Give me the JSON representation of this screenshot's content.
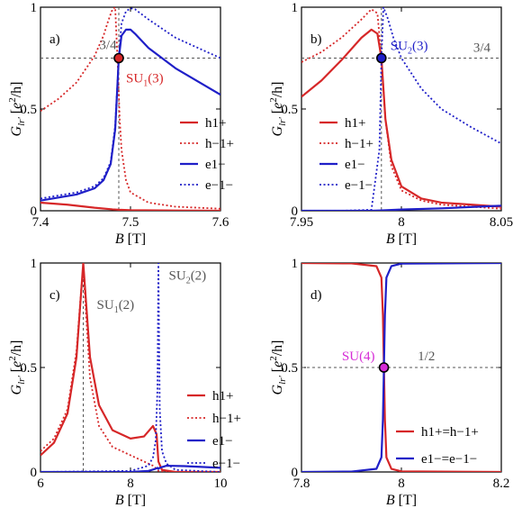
{
  "chart_data": [
    {
      "type": "line",
      "panel_label": "a)",
      "xlabel": "B [T]",
      "ylabel": "G_{lr'} [e^2/h]",
      "xlim": [
        7.4,
        7.6
      ],
      "ylim": [
        0,
        1
      ],
      "xticks": [
        7.4,
        7.5,
        7.6
      ],
      "xtick_labels": [
        "7.4",
        "7.5",
        "7.6"
      ],
      "yticks": [
        0,
        0.5,
        1
      ],
      "ytick_labels": [
        "0",
        "0.5",
        "1"
      ],
      "hline": {
        "y": 0.75,
        "label": "3/4"
      },
      "vline": {
        "x": 7.487
      },
      "marker": {
        "x": 7.487,
        "y": 0.75,
        "label": "SU",
        "sub": "1",
        "suffix": "(3)",
        "color": "#d62728"
      },
      "legend_placement": "right",
      "series": [
        {
          "name": "h1+",
          "color": "#d62728",
          "dash": false,
          "x": [
            7.4,
            7.43,
            7.46,
            7.48,
            7.487,
            7.5,
            7.55,
            7.6
          ],
          "y": [
            0.04,
            0.03,
            0.015,
            0.007,
            0.005,
            0.003,
            0.001,
            0.0
          ]
        },
        {
          "name": "h−1+",
          "color": "#d62728",
          "dash": true,
          "x": [
            7.4,
            7.42,
            7.44,
            7.46,
            7.47,
            7.475,
            7.48,
            7.483,
            7.486,
            7.488,
            7.49,
            7.495,
            7.5,
            7.52,
            7.55,
            7.6
          ],
          "y": [
            0.49,
            0.55,
            0.63,
            0.76,
            0.86,
            0.93,
            0.99,
            1.0,
            0.7,
            0.45,
            0.3,
            0.15,
            0.09,
            0.04,
            0.02,
            0.01
          ]
        },
        {
          "name": "e1−",
          "color": "#1f1fc8",
          "dash": false,
          "x": [
            7.4,
            7.44,
            7.46,
            7.47,
            7.478,
            7.483,
            7.487,
            7.49,
            7.495,
            7.5,
            7.505,
            7.52,
            7.55,
            7.6
          ],
          "y": [
            0.05,
            0.08,
            0.11,
            0.15,
            0.23,
            0.4,
            0.75,
            0.86,
            0.89,
            0.89,
            0.87,
            0.8,
            0.7,
            0.57
          ]
        },
        {
          "name": "e−1−",
          "color": "#1f1fc8",
          "dash": true,
          "x": [
            7.4,
            7.44,
            7.46,
            7.47,
            7.478,
            7.483,
            7.487,
            7.49,
            7.495,
            7.5,
            7.505,
            7.52,
            7.55,
            7.6
          ],
          "y": [
            0.06,
            0.09,
            0.12,
            0.16,
            0.24,
            0.42,
            0.75,
            0.92,
            0.98,
            0.995,
            0.99,
            0.94,
            0.85,
            0.75
          ]
        }
      ]
    },
    {
      "type": "line",
      "panel_label": "b)",
      "xlabel": "B [T]",
      "ylabel": "G_{lr'} [e^2/h]",
      "xlim": [
        7.95,
        8.05
      ],
      "ylim": [
        0,
        1
      ],
      "xticks": [
        7.95,
        8.0,
        8.05
      ],
      "xtick_labels": [
        "7.95",
        "8",
        "8.05"
      ],
      "yticks": [
        0,
        0.5,
        1
      ],
      "ytick_labels": [
        "0",
        "0.5",
        "1"
      ],
      "hline": {
        "y": 0.75,
        "label": "3/4"
      },
      "vline": {
        "x": 7.99
      },
      "marker": {
        "x": 7.99,
        "y": 0.75,
        "label": "SU",
        "sub": "2",
        "suffix": "(3)",
        "color": "#1f1fc8"
      },
      "legend_placement": "right",
      "series": [
        {
          "name": "h1+",
          "color": "#d62728",
          "dash": false,
          "x": [
            7.95,
            7.96,
            7.97,
            7.98,
            7.985,
            7.988,
            7.99,
            7.992,
            7.995,
            8.0,
            8.01,
            8.02,
            8.05
          ],
          "y": [
            0.56,
            0.64,
            0.74,
            0.85,
            0.89,
            0.87,
            0.75,
            0.45,
            0.25,
            0.12,
            0.06,
            0.04,
            0.02
          ]
        },
        {
          "name": "h−1+",
          "color": "#d62728",
          "dash": true,
          "x": [
            7.95,
            7.96,
            7.97,
            7.98,
            7.985,
            7.988,
            7.99,
            7.992,
            7.995,
            8.0,
            8.01,
            8.02,
            8.05
          ],
          "y": [
            0.73,
            0.78,
            0.85,
            0.94,
            0.99,
            0.97,
            0.75,
            0.45,
            0.22,
            0.1,
            0.05,
            0.03,
            0.01
          ]
        },
        {
          "name": "e1−",
          "color": "#1f1fc8",
          "dash": false,
          "x": [
            7.95,
            7.97,
            7.985,
            7.99,
            8.0,
            8.02,
            8.05
          ],
          "y": [
            0.0,
            0.0,
            0.0,
            0.002,
            0.006,
            0.012,
            0.025
          ]
        },
        {
          "name": "e−1−",
          "color": "#1f1fc8",
          "dash": true,
          "x": [
            7.95,
            7.97,
            7.985,
            7.989,
            7.99,
            7.991,
            7.993,
            7.996,
            8.0,
            8.01,
            8.02,
            8.035,
            8.05
          ],
          "y": [
            0.0,
            0.0,
            0.005,
            0.3,
            0.75,
            1.0,
            0.95,
            0.85,
            0.75,
            0.6,
            0.5,
            0.41,
            0.33
          ]
        }
      ]
    },
    {
      "type": "line",
      "panel_label": "c)",
      "xlabel": "B [T]",
      "ylabel": "G_{lr'} [e^2/h]",
      "xlim": [
        6,
        10
      ],
      "ylim": [
        0,
        1
      ],
      "xticks": [
        6,
        8,
        10
      ],
      "xtick_labels": [
        "6",
        "8",
        "10"
      ],
      "yticks": [
        0,
        0.5,
        1
      ],
      "ytick_labels": [
        "0",
        "0.5",
        "1"
      ],
      "vline": {
        "x": 6.95
      },
      "annotations": [
        {
          "text": "SU",
          "sub": "1",
          "suffix": "(2)",
          "x": 7.25,
          "y": 0.78
        },
        {
          "text": "SU",
          "sub": "2",
          "suffix": "(2)",
          "x": 8.85,
          "y": 0.92
        }
      ],
      "legend_placement": "right",
      "series": [
        {
          "name": "h1+",
          "color": "#d62728",
          "dash": false,
          "x": [
            6.0,
            6.3,
            6.6,
            6.8,
            6.9,
            6.95,
            7.0,
            7.1,
            7.3,
            7.6,
            8.0,
            8.3,
            8.5,
            8.58,
            8.62,
            8.7,
            9.0,
            10.0
          ],
          "y": [
            0.08,
            0.14,
            0.28,
            0.55,
            0.85,
            1.0,
            0.85,
            0.55,
            0.32,
            0.2,
            0.16,
            0.17,
            0.22,
            0.18,
            0.05,
            0.01,
            0.0,
            0.0
          ]
        },
        {
          "name": "h−1+",
          "color": "#d62728",
          "dash": true,
          "x": [
            6.0,
            6.3,
            6.6,
            6.8,
            6.9,
            6.95,
            7.0,
            7.1,
            7.3,
            7.6,
            8.0,
            8.3,
            8.5,
            8.58,
            8.62,
            9.0,
            10.0
          ],
          "y": [
            0.1,
            0.16,
            0.3,
            0.58,
            0.86,
            0.98,
            0.8,
            0.45,
            0.22,
            0.12,
            0.08,
            0.05,
            0.03,
            0.015,
            0.005,
            0.0,
            0.0
          ]
        },
        {
          "name": "e1−",
          "color": "#1f1fc8",
          "dash": false,
          "x": [
            6.0,
            8.0,
            8.4,
            8.55,
            8.6,
            8.62,
            8.65,
            8.8,
            9.2,
            10.0
          ],
          "y": [
            0.0,
            0.0,
            0.005,
            0.015,
            0.02,
            0.015,
            0.02,
            0.03,
            0.028,
            0.02
          ]
        },
        {
          "name": "e−1−",
          "color": "#1f1fc8",
          "dash": true,
          "x": [
            6.0,
            8.0,
            8.4,
            8.5,
            8.56,
            8.6,
            8.62,
            8.65,
            8.7,
            8.8,
            9.0,
            10.0
          ],
          "y": [
            0.0,
            0.005,
            0.03,
            0.07,
            0.15,
            0.4,
            1.0,
            0.3,
            0.1,
            0.04,
            0.01,
            0.0
          ]
        }
      ]
    },
    {
      "type": "line",
      "panel_label": "d)",
      "xlabel": "B [T]",
      "ylabel": "G_{lr'} [e^2/h]",
      "xlim": [
        7.8,
        8.2
      ],
      "ylim": [
        0,
        1
      ],
      "xticks": [
        7.8,
        8.0,
        8.2
      ],
      "xtick_labels": [
        "7.8",
        "8",
        "8.2"
      ],
      "yticks": [
        0,
        0.5,
        1
      ],
      "ytick_labels": [
        "0",
        "0.5",
        "1"
      ],
      "hline": {
        "y": 0.5,
        "label": "1/2"
      },
      "marker": {
        "x": 7.965,
        "y": 0.5,
        "label": "SU",
        "sub": "",
        "suffix": "(4)",
        "color": "#d62bd6"
      },
      "legend_placement": "right",
      "series": [
        {
          "name": "h1+=h−1+",
          "color": "#d62728",
          "dash": false,
          "x": [
            7.8,
            7.9,
            7.95,
            7.96,
            7.963,
            7.965,
            7.967,
            7.97,
            7.98,
            8.0,
            8.2
          ],
          "y": [
            1.0,
            0.998,
            0.985,
            0.93,
            0.75,
            0.5,
            0.25,
            0.07,
            0.015,
            0.003,
            0.0
          ]
        },
        {
          "name": "e1−=e−1−",
          "color": "#1f1fc8",
          "dash": false,
          "x": [
            7.8,
            7.9,
            7.95,
            7.96,
            7.963,
            7.965,
            7.967,
            7.97,
            7.98,
            8.0,
            8.2
          ],
          "y": [
            0.0,
            0.002,
            0.015,
            0.07,
            0.25,
            0.5,
            0.75,
            0.93,
            0.985,
            0.997,
            1.0
          ]
        }
      ]
    }
  ]
}
